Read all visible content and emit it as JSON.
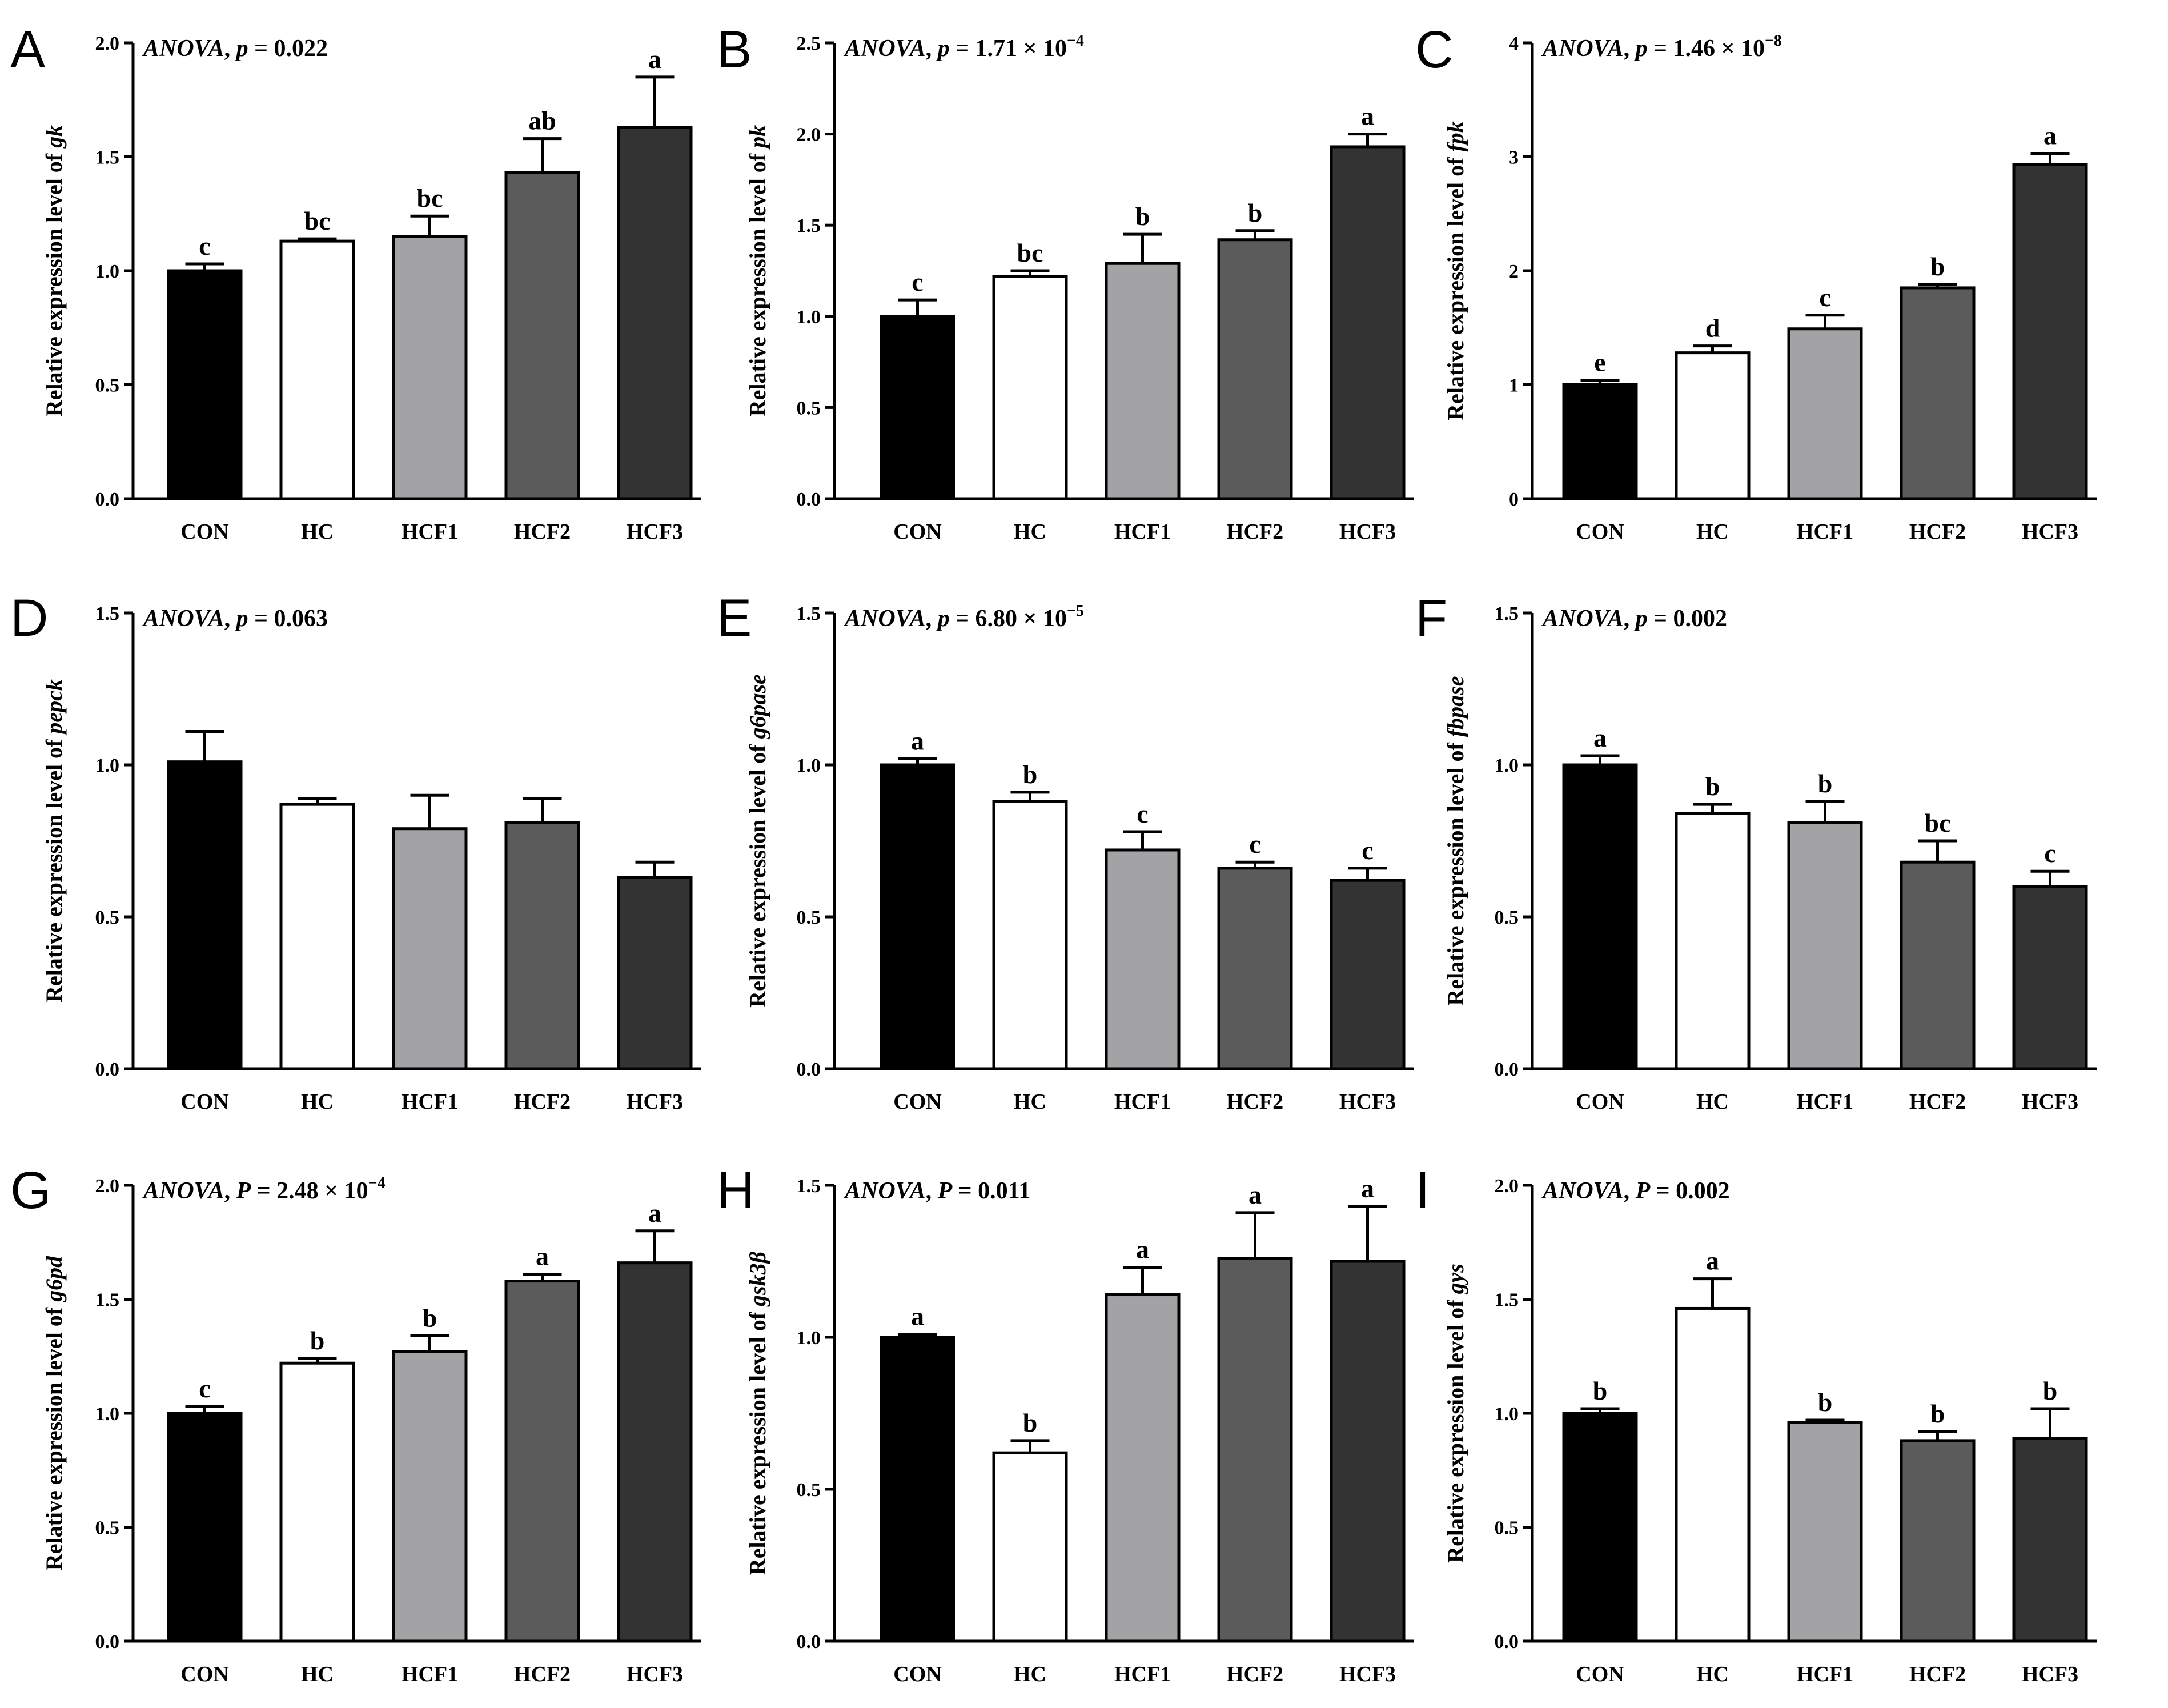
{
  "chart_data": [
    {
      "panel": "A",
      "type": "bar",
      "gene": "gk",
      "ylabel_prefix": "Relative expression level of ",
      "anova_label": "ANOVA",
      "stat_symbol": "p",
      "stat_value": "0.022",
      "stat_exponent": "",
      "ylim": [
        0,
        2.0
      ],
      "ticks": [
        "0.0",
        "0.5",
        "1.0",
        "1.5",
        "2.0"
      ],
      "categories": [
        "CON",
        "HC",
        "HCF1",
        "HCF2",
        "HCF3"
      ],
      "values": [
        1.0,
        1.13,
        1.15,
        1.43,
        1.63
      ],
      "errors": [
        0.03,
        0.01,
        0.09,
        0.15,
        0.22
      ],
      "letters": [
        "c",
        "bc",
        "bc",
        "ab",
        "a"
      ]
    },
    {
      "panel": "B",
      "type": "bar",
      "gene": "pk",
      "ylabel_prefix": "Relative expression level of ",
      "anova_label": "ANOVA",
      "stat_symbol": "p",
      "stat_value": "1.71 × 10",
      "stat_exponent": "−4",
      "ylim": [
        0,
        2.5
      ],
      "ticks": [
        "0.0",
        "0.5",
        "1.0",
        "1.5",
        "2.0",
        "2.5"
      ],
      "categories": [
        "CON",
        "HC",
        "HCF1",
        "HCF2",
        "HCF3"
      ],
      "values": [
        1.0,
        1.22,
        1.29,
        1.42,
        1.93
      ],
      "errors": [
        0.09,
        0.03,
        0.16,
        0.05,
        0.07
      ],
      "letters": [
        "c",
        "bc",
        "b",
        "b",
        "a"
      ]
    },
    {
      "panel": "C",
      "type": "bar",
      "gene": "fpk",
      "ylabel_prefix": "Relative expression level of ",
      "anova_label": "ANOVA",
      "stat_symbol": "p",
      "stat_value": "1.46 × 10",
      "stat_exponent": "−8",
      "ylim": [
        0,
        4
      ],
      "ticks": [
        "0",
        "1",
        "2",
        "3",
        "4"
      ],
      "categories": [
        "CON",
        "HC",
        "HCF1",
        "HCF2",
        "HCF3"
      ],
      "values": [
        1.0,
        1.28,
        1.49,
        1.85,
        2.93
      ],
      "errors": [
        0.04,
        0.06,
        0.12,
        0.03,
        0.1
      ],
      "letters": [
        "e",
        "d",
        "c",
        "b",
        "a"
      ]
    },
    {
      "panel": "D",
      "type": "bar",
      "gene": "pepck",
      "ylabel_prefix": "Relative expression level of ",
      "anova_label": "ANOVA",
      "stat_symbol": "p",
      "stat_value": "0.063",
      "stat_exponent": "",
      "ylim": [
        0,
        1.5
      ],
      "ticks": [
        "0.0",
        "0.5",
        "1.0",
        "1.5"
      ],
      "categories": [
        "CON",
        "HC",
        "HCF1",
        "HCF2",
        "HCF3"
      ],
      "values": [
        1.01,
        0.87,
        0.79,
        0.81,
        0.63
      ],
      "errors": [
        0.1,
        0.02,
        0.11,
        0.08,
        0.05
      ],
      "letters": [
        "",
        "",
        "",
        "",
        ""
      ]
    },
    {
      "panel": "E",
      "type": "bar",
      "gene": "g6pase",
      "ylabel_prefix": "Relative expression level of ",
      "anova_label": "ANOVA",
      "stat_symbol": "p",
      "stat_value": "6.80 × 10",
      "stat_exponent": "−5",
      "ylim": [
        0,
        1.5
      ],
      "ticks": [
        "0.0",
        "0.5",
        "1.0",
        "1.5"
      ],
      "categories": [
        "CON",
        "HC",
        "HCF1",
        "HCF2",
        "HCF3"
      ],
      "values": [
        1.0,
        0.88,
        0.72,
        0.66,
        0.62
      ],
      "errors": [
        0.02,
        0.03,
        0.06,
        0.02,
        0.04
      ],
      "letters": [
        "a",
        "b",
        "c",
        "c",
        "c"
      ]
    },
    {
      "panel": "F",
      "type": "bar",
      "gene": "fbpase",
      "ylabel_prefix": "Relative expression level of ",
      "anova_label": "ANOVA",
      "stat_symbol": "p",
      "stat_value": "0.002",
      "stat_exponent": "",
      "ylim": [
        0,
        1.5
      ],
      "ticks": [
        "0.0",
        "0.5",
        "1.0",
        "1.5"
      ],
      "categories": [
        "CON",
        "HC",
        "HCF1",
        "HCF2",
        "HCF3"
      ],
      "values": [
        1.0,
        0.84,
        0.81,
        0.68,
        0.6
      ],
      "errors": [
        0.03,
        0.03,
        0.07,
        0.07,
        0.05
      ],
      "letters": [
        "a",
        "b",
        "b",
        "bc",
        "c"
      ]
    },
    {
      "panel": "G",
      "type": "bar",
      "gene": "g6pd",
      "ylabel_prefix": "Relative expression level of ",
      "anova_label": "ANOVA",
      "stat_symbol": "P",
      "stat_value": "2.48 × 10",
      "stat_exponent": "−4",
      "ylim": [
        0,
        2.0
      ],
      "ticks": [
        "0.0",
        "0.5",
        "1.0",
        "1.5",
        "2.0"
      ],
      "categories": [
        "CON",
        "HC",
        "HCF1",
        "HCF2",
        "HCF3"
      ],
      "values": [
        1.0,
        1.22,
        1.27,
        1.58,
        1.66
      ],
      "errors": [
        0.03,
        0.02,
        0.07,
        0.03,
        0.14
      ],
      "letters": [
        "c",
        "b",
        "b",
        "a",
        "a"
      ]
    },
    {
      "panel": "H",
      "type": "bar",
      "gene": "gsk3β",
      "ylabel_prefix": "Relative expression level of ",
      "anova_label": "ANOVA",
      "stat_symbol": "P",
      "stat_value": "0.011",
      "stat_exponent": "",
      "ylim": [
        0,
        1.5
      ],
      "ticks": [
        "0.0",
        "0.5",
        "1.0",
        "1.5"
      ],
      "categories": [
        "CON",
        "HC",
        "HCF1",
        "HCF2",
        "HCF3"
      ],
      "values": [
        1.0,
        0.62,
        1.14,
        1.26,
        1.25
      ],
      "errors": [
        0.01,
        0.04,
        0.09,
        0.15,
        0.18
      ],
      "letters": [
        "a",
        "b",
        "a",
        "a",
        "a"
      ]
    },
    {
      "panel": "I",
      "type": "bar",
      "gene": "gys",
      "ylabel_prefix": "Relative expression level of ",
      "anova_label": "ANOVA",
      "stat_symbol": "P",
      "stat_value": "0.002",
      "stat_exponent": "",
      "ylim": [
        0,
        2.0
      ],
      "ticks": [
        "0.0",
        "0.5",
        "1.0",
        "1.5",
        "2.0"
      ],
      "categories": [
        "CON",
        "HC",
        "HCF1",
        "HCF2",
        "HCF3"
      ],
      "values": [
        1.0,
        1.46,
        0.96,
        0.88,
        0.89
      ],
      "errors": [
        0.02,
        0.13,
        0.01,
        0.04,
        0.13
      ],
      "letters": [
        "b",
        "a",
        "b",
        "b",
        "b"
      ]
    }
  ],
  "colors": {
    "bars": [
      "#000000",
      "#ffffff",
      "#a3a3a6",
      "#5b5b5b",
      "#333333"
    ],
    "axis": "#000000"
  }
}
